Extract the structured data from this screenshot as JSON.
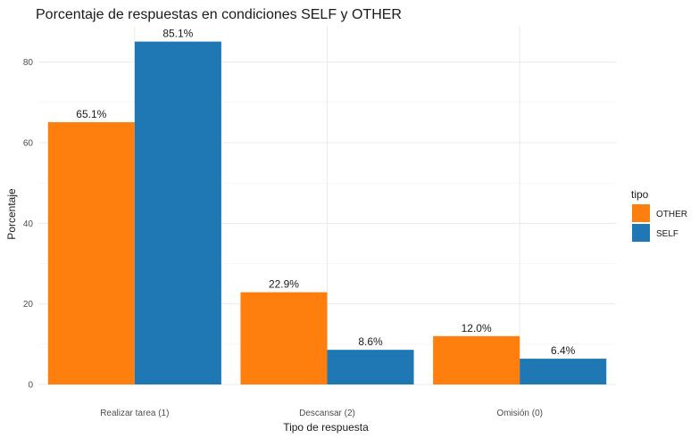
{
  "chart_data": {
    "type": "bar",
    "title": "Porcentaje de respuestas en condiciones SELF y OTHER",
    "xlabel": "Tipo de respuesta",
    "ylabel": "Porcentaje",
    "categories": [
      "Realizar tarea (1)",
      "Descansar (2)",
      "Omisión (0)"
    ],
    "series": [
      {
        "name": "OTHER",
        "color": "#ff7f0e",
        "values": [
          65.1,
          22.9,
          12.0
        ],
        "labels": [
          "65.1%",
          "22.9%",
          "12.0%"
        ]
      },
      {
        "name": "SELF",
        "color": "#1f77b4",
        "values": [
          85.1,
          8.6,
          6.4
        ],
        "labels": [
          "85.1%",
          "8.6%",
          "6.4%"
        ]
      }
    ],
    "ylim": [
      0,
      89
    ],
    "yticks": [
      0,
      20,
      40,
      60,
      80
    ],
    "yticks_labels": [
      "0",
      "20",
      "40",
      "60",
      "80"
    ],
    "grid": true,
    "legend": {
      "title": "tipo",
      "position": "right"
    }
  }
}
